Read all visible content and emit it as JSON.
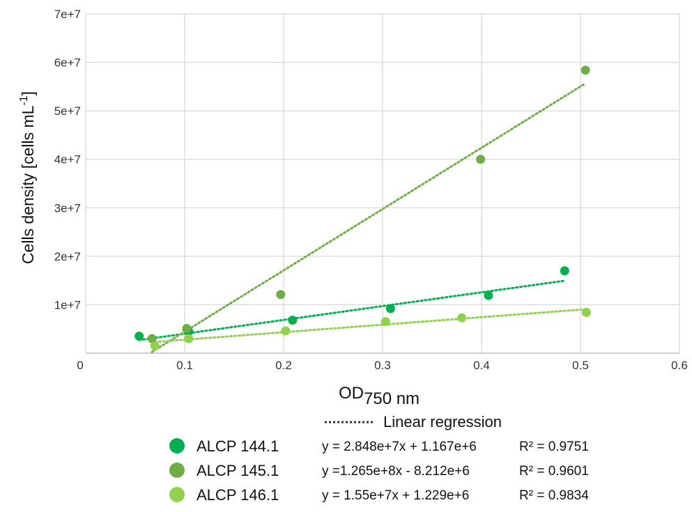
{
  "chart_data": {
    "type": "scatter",
    "title": "",
    "xlabel": {
      "main": "OD",
      "sub": "750 nm"
    },
    "ylabel": {
      "main": "Cells density [cells mL",
      "sup": "-1",
      "end": "]"
    },
    "xlim": [
      0,
      0.6
    ],
    "ylim": [
      0,
      70000000
    ],
    "xticks": [
      0,
      0.1,
      0.2,
      0.3,
      0.4,
      0.5,
      0.6
    ],
    "xtick_labels": [
      "0",
      "0.1",
      "0.2",
      "0.3",
      "0.4",
      "0.5",
      "0.6"
    ],
    "yticks": [
      10000000,
      20000000,
      30000000,
      40000000,
      50000000,
      60000000,
      70000000
    ],
    "ytick_labels": [
      "1e+7",
      "2e+7",
      "3e+7",
      "4e+7",
      "5e+7",
      "6e+7",
      "7e+7"
    ],
    "grid": true,
    "regression_label": "Linear regression",
    "series": [
      {
        "name": "ALCP 144.1",
        "color": "#00b050",
        "points": [
          [
            0.054,
            3500000
          ],
          [
            0.104,
            4500000
          ],
          [
            0.209,
            6800000
          ],
          [
            0.308,
            9200000
          ],
          [
            0.407,
            11900000
          ],
          [
            0.484,
            17000000
          ]
        ],
        "slope": 28480000,
        "intercept": 1167000,
        "fit_range": [
          0.054,
          0.484
        ],
        "equation": "y = 2.848e+7x + 1.167e+6",
        "r2": "R² = 0.9751"
      },
      {
        "name": "ALCP 145.1",
        "color": "#70ad47",
        "points": [
          [
            0.067,
            3000000
          ],
          [
            0.102,
            5100000
          ],
          [
            0.197,
            12100000
          ],
          [
            0.399,
            40000000
          ],
          [
            0.505,
            58400000
          ]
        ],
        "slope": 126500000,
        "intercept": -8212000,
        "fit_range": [
          0.067,
          0.505
        ],
        "equation": "y =1.265e+8x - 8.212e+6",
        "r2": "R² = 0.9601"
      },
      {
        "name": "ALCP 146.1",
        "color": "#92d050",
        "points": [
          [
            0.07,
            1500000
          ],
          [
            0.104,
            3000000
          ],
          [
            0.202,
            4600000
          ],
          [
            0.303,
            6500000
          ],
          [
            0.38,
            7300000
          ],
          [
            0.506,
            8400000
          ]
        ],
        "slope": 15500000,
        "intercept": 1229000,
        "fit_range": [
          0.07,
          0.506
        ],
        "equation": "y = 1.55e+7x + 1.229e+6",
        "r2": "R² = 0.9834"
      }
    ]
  }
}
